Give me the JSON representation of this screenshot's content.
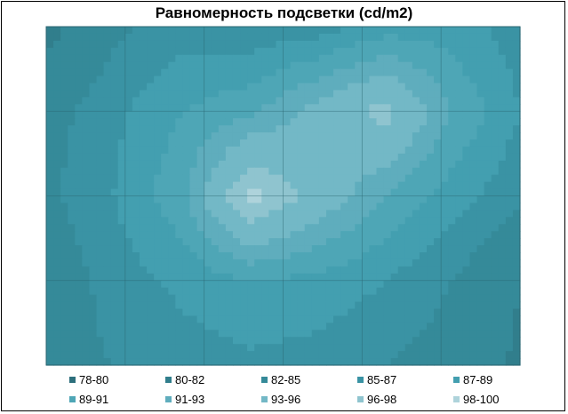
{
  "chart_data": {
    "type": "heatmap",
    "title": "Равномерность подсветки (cd/m2)",
    "xlabel": "",
    "ylabel": "",
    "grid": true,
    "legend_position": "bottom",
    "bands": [
      {
        "label": "78-80",
        "min": 78,
        "max": 80,
        "color": "#2d6f7c"
      },
      {
        "label": "80-82",
        "min": 80,
        "max": 82,
        "color": "#317e8c"
      },
      {
        "label": "82-85",
        "min": 82,
        "max": 85,
        "color": "#358a99"
      },
      {
        "label": "85-87",
        "min": 85,
        "max": 87,
        "color": "#3a93a4"
      },
      {
        "label": "87-89",
        "min": 87,
        "max": 89,
        "color": "#439fb0"
      },
      {
        "label": "89-91",
        "min": 89,
        "max": 91,
        "color": "#4ea6b6"
      },
      {
        "label": "91-93",
        "min": 91,
        "max": 93,
        "color": "#5fadbd"
      },
      {
        "label": "93-96",
        "min": 93,
        "max": 96,
        "color": "#73b8c6"
      },
      {
        "label": "96-98",
        "min": 96,
        "max": 98,
        "color": "#8fc4cf"
      },
      {
        "label": "98-100",
        "min": 98,
        "max": 100,
        "color": "#aed3db"
      }
    ],
    "grid_values": [
      [
        81.0,
        84.5,
        86.0,
        85.5,
        86.0,
        88.0,
        88.0,
        86.0
      ],
      [
        84.0,
        86.5,
        89.0,
        90.5,
        94.0,
        97.0,
        91.0,
        87.0
      ],
      [
        84.5,
        87.0,
        90.5,
        99.0,
        95.0,
        91.0,
        88.0,
        85.5
      ],
      [
        83.0,
        86.0,
        87.5,
        89.0,
        88.5,
        87.0,
        85.0,
        82.0
      ],
      [
        84.0,
        85.0,
        86.0,
        86.5,
        86.0,
        85.0,
        84.0,
        81.5
      ]
    ]
  }
}
